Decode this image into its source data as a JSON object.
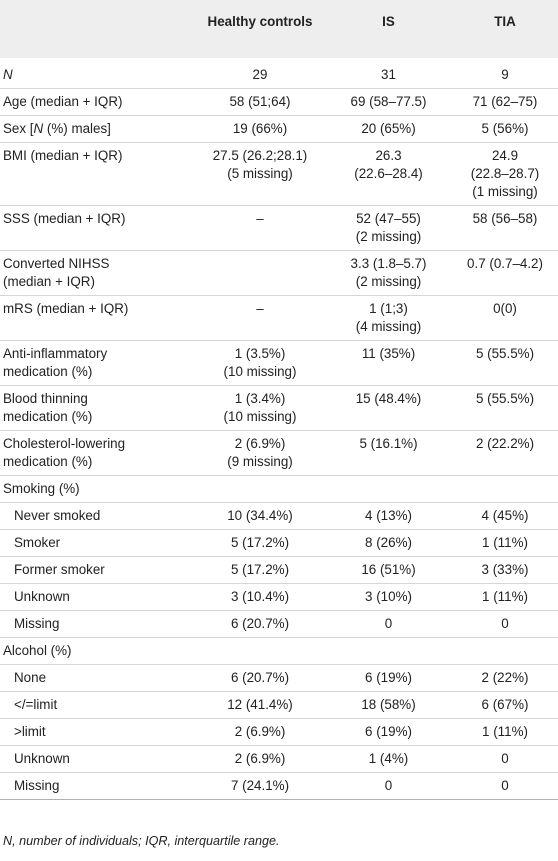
{
  "headers": [
    "",
    "Healthy controls",
    "IS",
    "TIA"
  ],
  "rows": [
    {
      "label": "N",
      "italic_label": true,
      "indent": false,
      "values": [
        "29",
        "31",
        "9"
      ]
    },
    {
      "label": "Age (median + IQR)",
      "indent": false,
      "values": [
        "58 (51;64)",
        "69 (58–77.5)",
        "71 (62–75)"
      ]
    },
    {
      "label": "Sex [N (%) males]",
      "indent": false,
      "values": [
        "19 (66%)",
        "20 (65%)",
        "5 (56%)"
      ]
    },
    {
      "label": "BMI (median + IQR)",
      "indent": false,
      "values": [
        "27.5 (26.2;28.1)\n(5 missing)",
        "26.3\n(22.6–28.4)",
        "24.9\n(22.8–28.7)\n(1 missing)"
      ]
    },
    {
      "label": "SSS (median + IQR)",
      "indent": false,
      "values": [
        "–",
        "52 (47–55)\n(2 missing)",
        "58 (56–58)"
      ]
    },
    {
      "label": "Converted NIHSS\n(median + IQR)",
      "indent": false,
      "values": [
        "",
        "3.3 (1.8–5.7)\n(2 missing)",
        "0.7 (0.7–4.2)"
      ]
    },
    {
      "label": "mRS (median + IQR)",
      "indent": false,
      "values": [
        "–",
        "1 (1;3)\n(4 missing)",
        "0(0)"
      ]
    },
    {
      "label": "Anti-inflammatory\nmedication (%)",
      "indent": false,
      "values": [
        "1 (3.5%)\n(10 missing)",
        "11 (35%)",
        "5 (55.5%)"
      ]
    },
    {
      "label": "Blood thinning\nmedication (%)",
      "indent": false,
      "values": [
        "1 (3.4%)\n(10 missing)",
        "15 (48.4%)",
        "5 (55.5%)"
      ]
    },
    {
      "label": "Cholesterol-lowering\nmedication (%)",
      "indent": false,
      "values": [
        "2 (6.9%)\n(9 missing)",
        "5 (16.1%)",
        "2 (22.2%)"
      ]
    },
    {
      "label": "Smoking (%)",
      "indent": false,
      "values": [
        "",
        "",
        ""
      ]
    },
    {
      "label": "Never smoked",
      "indent": true,
      "values": [
        "10 (34.4%)",
        "4 (13%)",
        "4 (45%)"
      ]
    },
    {
      "label": "Smoker",
      "indent": true,
      "values": [
        "5 (17.2%)",
        "8 (26%)",
        "1 (11%)"
      ]
    },
    {
      "label": "Former smoker",
      "indent": true,
      "values": [
        "5 (17.2%)",
        "16 (51%)",
        "3 (33%)"
      ]
    },
    {
      "label": "Unknown",
      "indent": true,
      "values": [
        "3 (10.4%)",
        "3 (10%)",
        "1 (11%)"
      ]
    },
    {
      "label": "Missing",
      "indent": true,
      "values": [
        "6 (20.7%)",
        "0",
        "0"
      ]
    },
    {
      "label": "Alcohol (%)",
      "indent": false,
      "values": [
        "",
        "",
        ""
      ]
    },
    {
      "label": "None",
      "indent": true,
      "values": [
        "6 (20.7%)",
        "6 (19%)",
        "2 (22%)"
      ]
    },
    {
      "label": "</=limit",
      "indent": true,
      "values": [
        "12 (41.4%)",
        "18 (58%)",
        "6 (67%)"
      ]
    },
    {
      "label": ">limit",
      "indent": true,
      "values": [
        "2 (6.9%)",
        "6 (19%)",
        "1 (11%)"
      ]
    },
    {
      "label": "Unknown",
      "indent": true,
      "values": [
        "2 (6.9%)",
        "1 (4%)",
        "0"
      ]
    },
    {
      "label": "Missing",
      "indent": true,
      "values": [
        "7 (24.1%)",
        "0",
        "0"
      ]
    }
  ],
  "footnote": "N, number of individuals; IQR, interquartile range."
}
